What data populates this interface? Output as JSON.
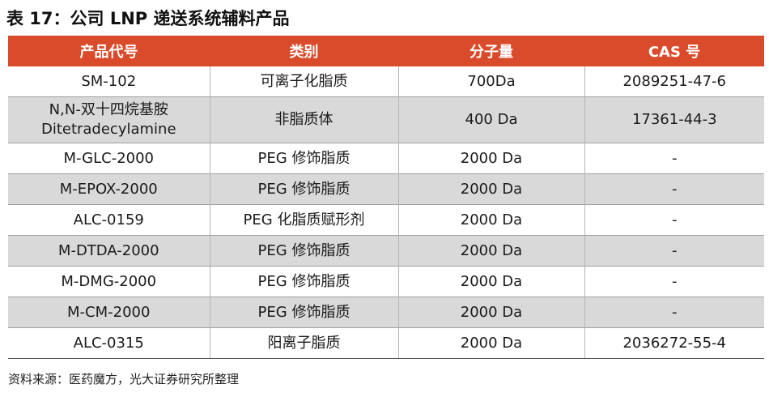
{
  "title": "表 17：公司 LNP 递送系统辅料产品",
  "table": {
    "headers": [
      "产品代号",
      "类别",
      "分子量",
      "CAS 号"
    ],
    "rows": [
      {
        "code": "SM-102",
        "code2": "",
        "category": "可离子化脂质",
        "mw": "700Da",
        "cas": "2089251-47-6"
      },
      {
        "code": "N,N-双十四烷基胺",
        "code2": "Ditetradecylamine",
        "category": "非脂质体",
        "mw": "400 Da",
        "cas": "17361-44-3"
      },
      {
        "code": "M-GLC-2000",
        "code2": "",
        "category": "PEG 修饰脂质",
        "mw": "2000 Da",
        "cas": "-"
      },
      {
        "code": "M-EPOX-2000",
        "code2": "",
        "category": "PEG 修饰脂质",
        "mw": "2000 Da",
        "cas": "-"
      },
      {
        "code": "ALC-0159",
        "code2": "",
        "category": "PEG 化脂质赋形剂",
        "mw": "2000 Da",
        "cas": "-"
      },
      {
        "code": "M-DTDA-2000",
        "code2": "",
        "category": "PEG 修饰脂质",
        "mw": "2000 Da",
        "cas": "-"
      },
      {
        "code": "M-DMG-2000",
        "code2": "",
        "category": "PEG 修饰脂质",
        "mw": "2000 Da",
        "cas": "-"
      },
      {
        "code": "M-CM-2000",
        "code2": "",
        "category": "PEG 修饰脂质",
        "mw": "2000 Da",
        "cas": "-"
      },
      {
        "code": "ALC-0315",
        "code2": "",
        "category": "阳离子脂质",
        "mw": "2000 Da",
        "cas": "2036272-55-4"
      }
    ]
  },
  "source": "资料来源：医药魔方，光大证券研究所整理",
  "colors": {
    "header_bg": "#d94b2b",
    "header_text": "#ffffff",
    "shaded_row": "#d9d9d9"
  }
}
